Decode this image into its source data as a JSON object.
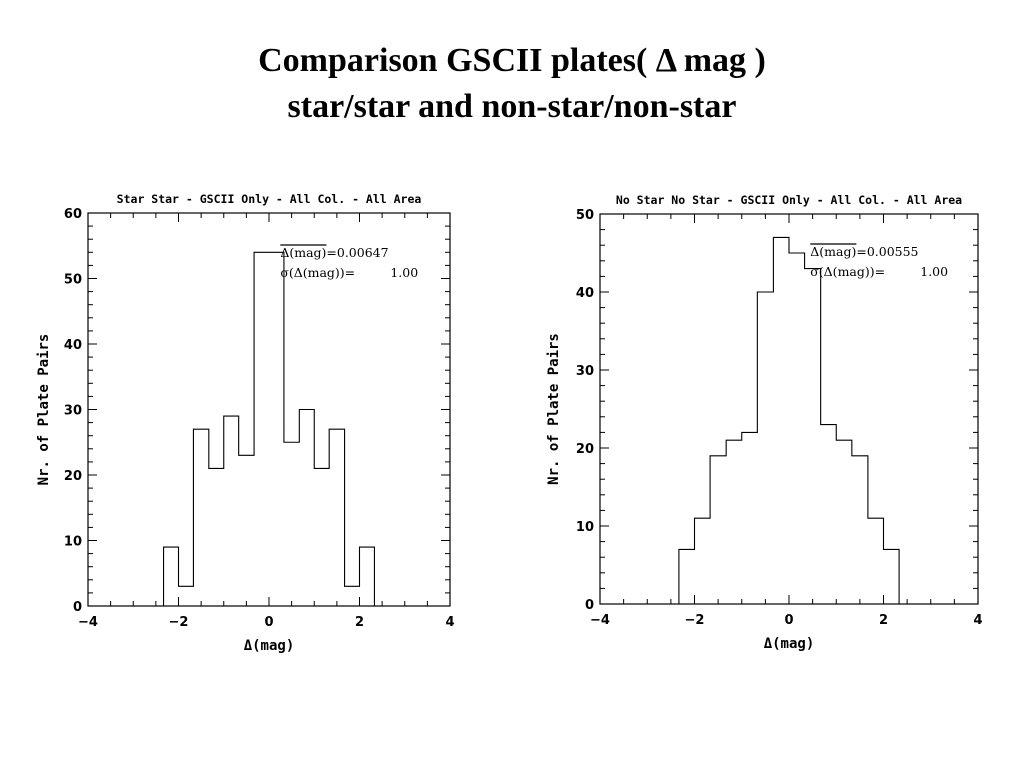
{
  "slide": {
    "title_line1": "Comparison GSCII plates( Δ mag )",
    "title_line2": "star/star and non-star/non-star"
  },
  "chart_data": [
    {
      "type": "bar",
      "style": "step-histogram",
      "title": "Star Star - GSCII Only - All Col. - All Area",
      "xlabel": "Δ(mag)",
      "ylabel": "Nr. of Plate Pairs",
      "xlim": [
        -4,
        4
      ],
      "ylim": [
        0,
        60
      ],
      "xticks": [
        -4,
        -2,
        0,
        2,
        4
      ],
      "yticks": [
        0,
        10,
        20,
        30,
        40,
        50,
        60
      ],
      "bin_edges": [
        -2.33,
        -2.0,
        -1.67,
        -1.33,
        -1.0,
        -0.67,
        -0.33,
        0.33,
        0.67,
        1.0,
        1.33,
        1.67,
        2.0,
        2.33
      ],
      "values": [
        9,
        3,
        27,
        21,
        29,
        23,
        54,
        25,
        30,
        21,
        27,
        3,
        9
      ],
      "annotation": {
        "mean_label": "Δ(mag)",
        "mean_value": "=0.00647",
        "sigma_label": "σ(Δ(mag))=",
        "sigma_value": "1.00"
      },
      "grid": false
    },
    {
      "type": "bar",
      "style": "step-histogram",
      "title": "No Star No Star - GSCII Only - All Col. - All Area",
      "xlabel": "Δ(mag)",
      "ylabel": "Nr. of Plate Pairs",
      "xlim": [
        -4,
        4
      ],
      "ylim": [
        0,
        50
      ],
      "xticks": [
        -4,
        -2,
        0,
        2,
        4
      ],
      "yticks": [
        0,
        10,
        20,
        30,
        40,
        50
      ],
      "bin_edges": [
        -2.33,
        -2.0,
        -1.67,
        -1.33,
        -1.0,
        -0.67,
        -0.33,
        0.0,
        0.33,
        0.67,
        1.0,
        1.33,
        1.67,
        2.0,
        2.33
      ],
      "values": [
        7,
        11,
        19,
        21,
        22,
        40,
        47,
        45,
        43,
        23,
        21,
        19,
        11,
        7
      ],
      "annotation": {
        "mean_label": "Δ(mag)",
        "mean_value": "=0.00555",
        "sigma_label": "σ(Δ(mag))=",
        "sigma_value": "1.00"
      },
      "grid": false
    }
  ]
}
